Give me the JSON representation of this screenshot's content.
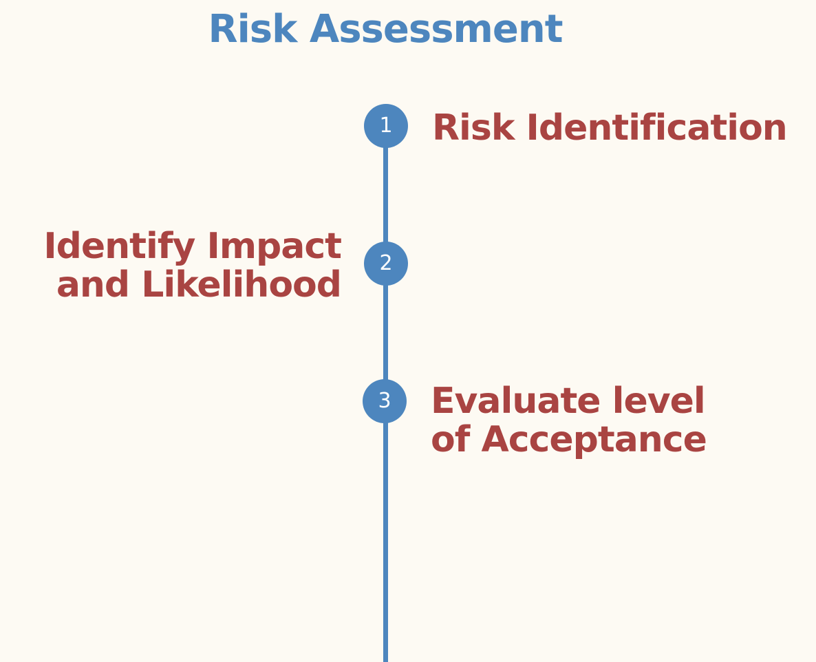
{
  "diagram": {
    "title": "Risk Assessment",
    "steps": [
      {
        "number": "1",
        "label": "Risk Identification",
        "side": "right"
      },
      {
        "number": "2",
        "label": "Identify Impact\nand Likelihood",
        "side": "left"
      },
      {
        "number": "3",
        "label": "Evaluate level\nof Acceptance",
        "side": "right"
      }
    ]
  },
  "colors": {
    "background": "#fdfaf3",
    "accent": "#4d86be",
    "label": "#a94442"
  }
}
